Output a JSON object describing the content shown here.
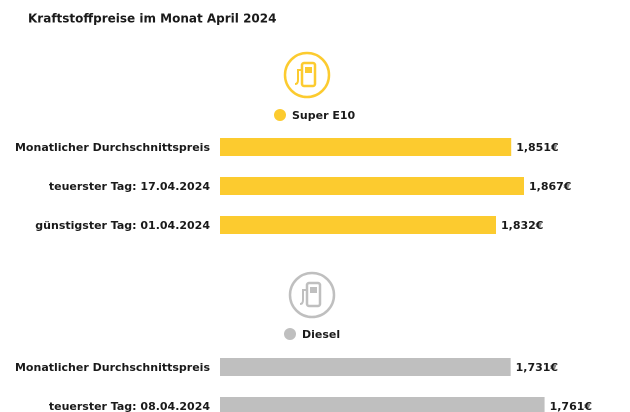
{
  "chart_data": [
    {
      "type": "bar",
      "orientation": "horizontal",
      "title": "Kraftstoffpreise im Monat April 2024",
      "categories": [
        "Monatlicher Durchschnittspreis",
        "teuerster Tag: 17.04.2024",
        "günstigster Tag: 01.04.2024"
      ],
      "series": [
        {
          "name": "Super E10",
          "color": "#fccb2f",
          "values": [
            1.851,
            1.867,
            1.832
          ],
          "value_labels": [
            "1,851€",
            "1,867€",
            "1,832€"
          ]
        }
      ],
      "xlim": [
        1.487,
        1.962
      ]
    },
    {
      "type": "bar",
      "orientation": "horizontal",
      "categories": [
        "Monatlicher Durchschnittspreis",
        "teuerster Tag: 08.04.2024"
      ],
      "series": [
        {
          "name": "Diesel",
          "color": "#bfbfbf",
          "values": [
            1.731,
            1.761
          ],
          "value_labels": [
            "1,731€",
            "1,761€"
          ]
        }
      ],
      "xlim": [
        1.474,
        1.81
      ]
    }
  ]
}
